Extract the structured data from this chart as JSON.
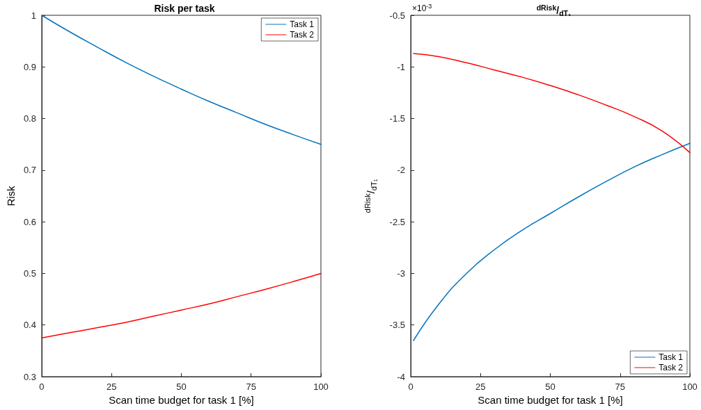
{
  "chart_data": [
    {
      "type": "line",
      "title": "Risk per task",
      "xlabel": "Scan time budget for task 1 [%]",
      "ylabel": "Risk",
      "xlim": [
        0,
        100
      ],
      "xticks": [
        0,
        25,
        50,
        75,
        100
      ],
      "ylim": [
        0.3,
        1
      ],
      "yticks": [
        0.3,
        0.4,
        0.5,
        0.6,
        0.7,
        0.8,
        0.9,
        1
      ],
      "grid": false,
      "legend": "top right",
      "marker": "none",
      "line_style": "solid",
      "series": [
        {
          "name": "Task 1",
          "color": "#0072bd",
          "x": [
            0,
            10,
            20,
            30,
            40,
            50,
            60,
            70,
            80,
            90,
            100
          ],
          "values": [
            1,
            0.968,
            0.938,
            0.909,
            0.882,
            0.857,
            0.833,
            0.811,
            0.789,
            0.769,
            0.75
          ]
        },
        {
          "name": "Task 2",
          "color": "#ff0000",
          "x": [
            0,
            10,
            20,
            30,
            40,
            50,
            60,
            70,
            80,
            90,
            100
          ],
          "values": [
            0.375,
            0.385,
            0.395,
            0.405,
            0.417,
            0.429,
            0.441,
            0.455,
            0.469,
            0.484,
            0.5
          ]
        }
      ]
    },
    {
      "type": "line",
      "title": "$^{dRisk}$/$_{dT₁}$",
      "xlabel": "Scan time budget for task 1 [%]",
      "ylabel": "$^{dRisk}$/$_{dT₁}$",
      "annotations": [
        "×10$^{-3}$"
      ],
      "xlim": [
        0,
        100
      ],
      "xticks": [
        0,
        25,
        50,
        75,
        100
      ],
      "ylim": [
        -4,
        -0.5
      ],
      "yticks": [
        -4,
        -3.5,
        -3,
        -2.5,
        -2,
        -1.5,
        -1,
        -0.5
      ],
      "grid": false,
      "legend": "bottom right",
      "marker": "none",
      "line_style": "solid",
      "series": [
        {
          "name": "Task 1",
          "color": "#0072bd",
          "x": [
            1,
            10,
            20,
            30,
            40,
            50,
            60,
            70,
            80,
            90,
            100
          ],
          "values": [
            -3.65,
            -3.3,
            -3.0,
            -2.77,
            -2.58,
            -2.42,
            -2.26,
            -2.11,
            -1.97,
            -1.85,
            -1.74
          ]
        },
        {
          "name": "Task 2",
          "color": "#ff0000",
          "x": [
            1,
            10,
            20,
            30,
            40,
            50,
            60,
            70,
            80,
            90,
            100
          ],
          "values": [
            -0.87,
            -0.9,
            -0.96,
            -1.03,
            -1.1,
            -1.18,
            -1.27,
            -1.37,
            -1.48,
            -1.62,
            -1.83
          ]
        }
      ]
    }
  ]
}
